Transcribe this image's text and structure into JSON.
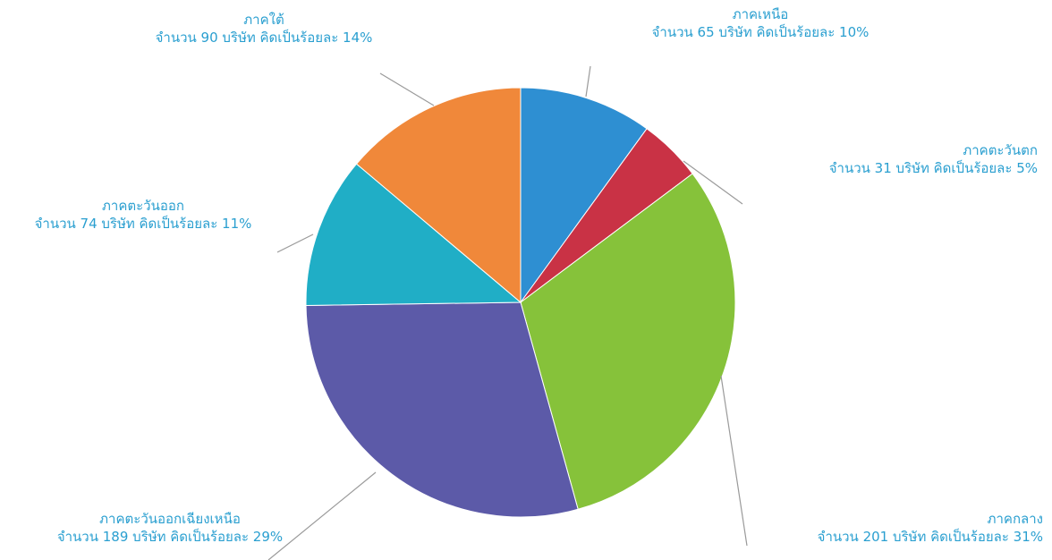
{
  "chart_data": {
    "type": "pie",
    "title": "",
    "slices": [
      {
        "label": "ภาคเหนือ",
        "value": 65,
        "percent": 10,
        "detail": "จำนวน 65 บริษัท คิดเป็นร้อยละ 10%",
        "color": "#2e8fd2"
      },
      {
        "label": "ภาคตะวันตก",
        "value": 31,
        "percent": 5,
        "detail": "จำนวน 31 บริษัท คิดเป็นร้อยละ 5%",
        "color": "#c93245"
      },
      {
        "label": "ภาคกลาง",
        "value": 201,
        "percent": 31,
        "detail": "จำนวน 201 บริษัท คิดเป็นร้อยละ 31%",
        "color": "#86c23a"
      },
      {
        "label": "ภาคตะวันออกเฉียงเหนือ",
        "value": 189,
        "percent": 29,
        "detail": "จำนวน 189 บริษัท คิดเป็นร้อยละ 29%",
        "color": "#5c5aa8"
      },
      {
        "label": "ภาคตะวันออก",
        "value": 74,
        "percent": 11,
        "detail": "จำนวน 74 บริษัท คิดเป็นร้อยละ 11%",
        "color": "#20aec6"
      },
      {
        "label": "ภาคใต้",
        "value": 90,
        "percent": 14,
        "detail": "จำนวน 90 บริษัท คิดเป็นร้อยละ 14%",
        "color": "#f0883a"
      }
    ]
  }
}
